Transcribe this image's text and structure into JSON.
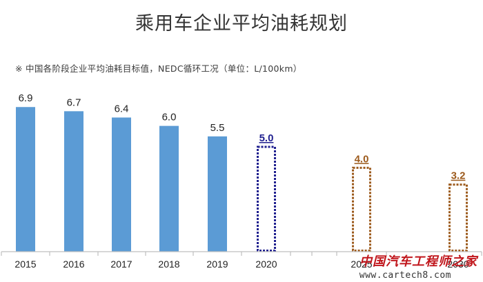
{
  "title": "乘用车企业平均油耗规划",
  "subtitle": "※ 中国各阶段企业平均油耗目标值，NEDC循环工况（单位：L/100km）",
  "watermark": {
    "text": "中国汽车工程师之家",
    "url": "www.cartech8.com"
  },
  "colors": {
    "actual": "#5b9bd5",
    "target_2020": "#1f1f8f",
    "target_future": "#9c5a1c"
  },
  "chart_data": {
    "type": "bar",
    "title": "乘用车企业平均油耗规划",
    "subtitle": "※ 中国各阶段企业平均油耗目标值，NEDC循环工况（单位：L/100km）",
    "xlabel": "",
    "ylabel": "",
    "ylim": [
      0,
      7.5
    ],
    "grid": false,
    "categories": [
      "2015",
      "2016",
      "2017",
      "2018",
      "2019",
      "2020",
      "2025",
      "2030"
    ],
    "values": [
      6.9,
      6.7,
      6.4,
      6.0,
      5.5,
      5.0,
      4.0,
      3.2
    ],
    "labels": [
      "6.9",
      "6.7",
      "6.4",
      "6.0",
      "5.5",
      "5.0",
      "4.0",
      "3.2"
    ],
    "styles": [
      "solid",
      "solid",
      "solid",
      "solid",
      "solid",
      "dotted-blue",
      "dotted-brown",
      "dotted-brown"
    ]
  }
}
